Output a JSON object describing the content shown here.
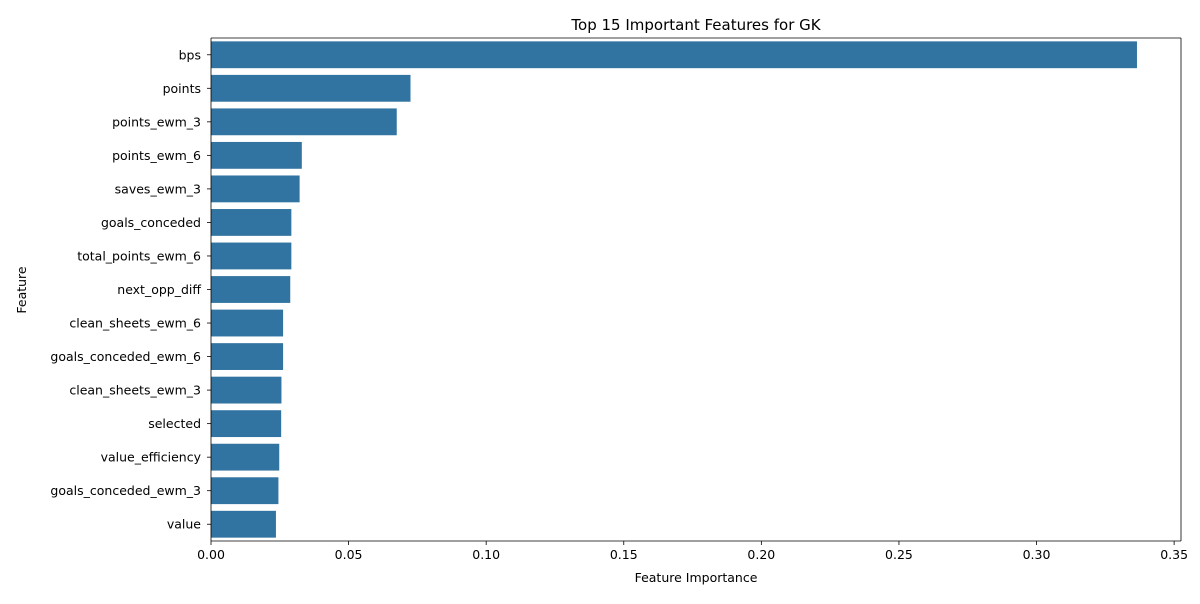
{
  "chart_data": {
    "type": "bar",
    "orientation": "horizontal",
    "title": "Top 15 Important Features for GK",
    "xlabel": "Feature Importance",
    "ylabel": "Feature",
    "xlim": [
      0,
      0.3525
    ],
    "xticks": [
      0.0,
      0.05,
      0.1,
      0.15,
      0.2,
      0.25,
      0.3,
      0.35
    ],
    "xtick_labels": [
      "0.00",
      "0.05",
      "0.10",
      "0.15",
      "0.20",
      "0.25",
      "0.30",
      "0.35"
    ],
    "grid": false,
    "legend": "none",
    "bar_color": "#3274a1",
    "categories": [
      "bps",
      "points",
      "points_ewm_3",
      "points_ewm_6",
      "saves_ewm_3",
      "goals_conceded",
      "total_points_ewm_6",
      "next_opp_diff",
      "clean_sheets_ewm_6",
      "goals_conceded_ewm_6",
      "clean_sheets_ewm_3",
      "selected",
      "value_efficiency",
      "goals_conceded_ewm_3",
      "value"
    ],
    "values": [
      0.3365,
      0.0725,
      0.0675,
      0.033,
      0.0322,
      0.0292,
      0.0292,
      0.0288,
      0.0262,
      0.0262,
      0.0256,
      0.0255,
      0.0248,
      0.0245,
      0.0236
    ]
  }
}
